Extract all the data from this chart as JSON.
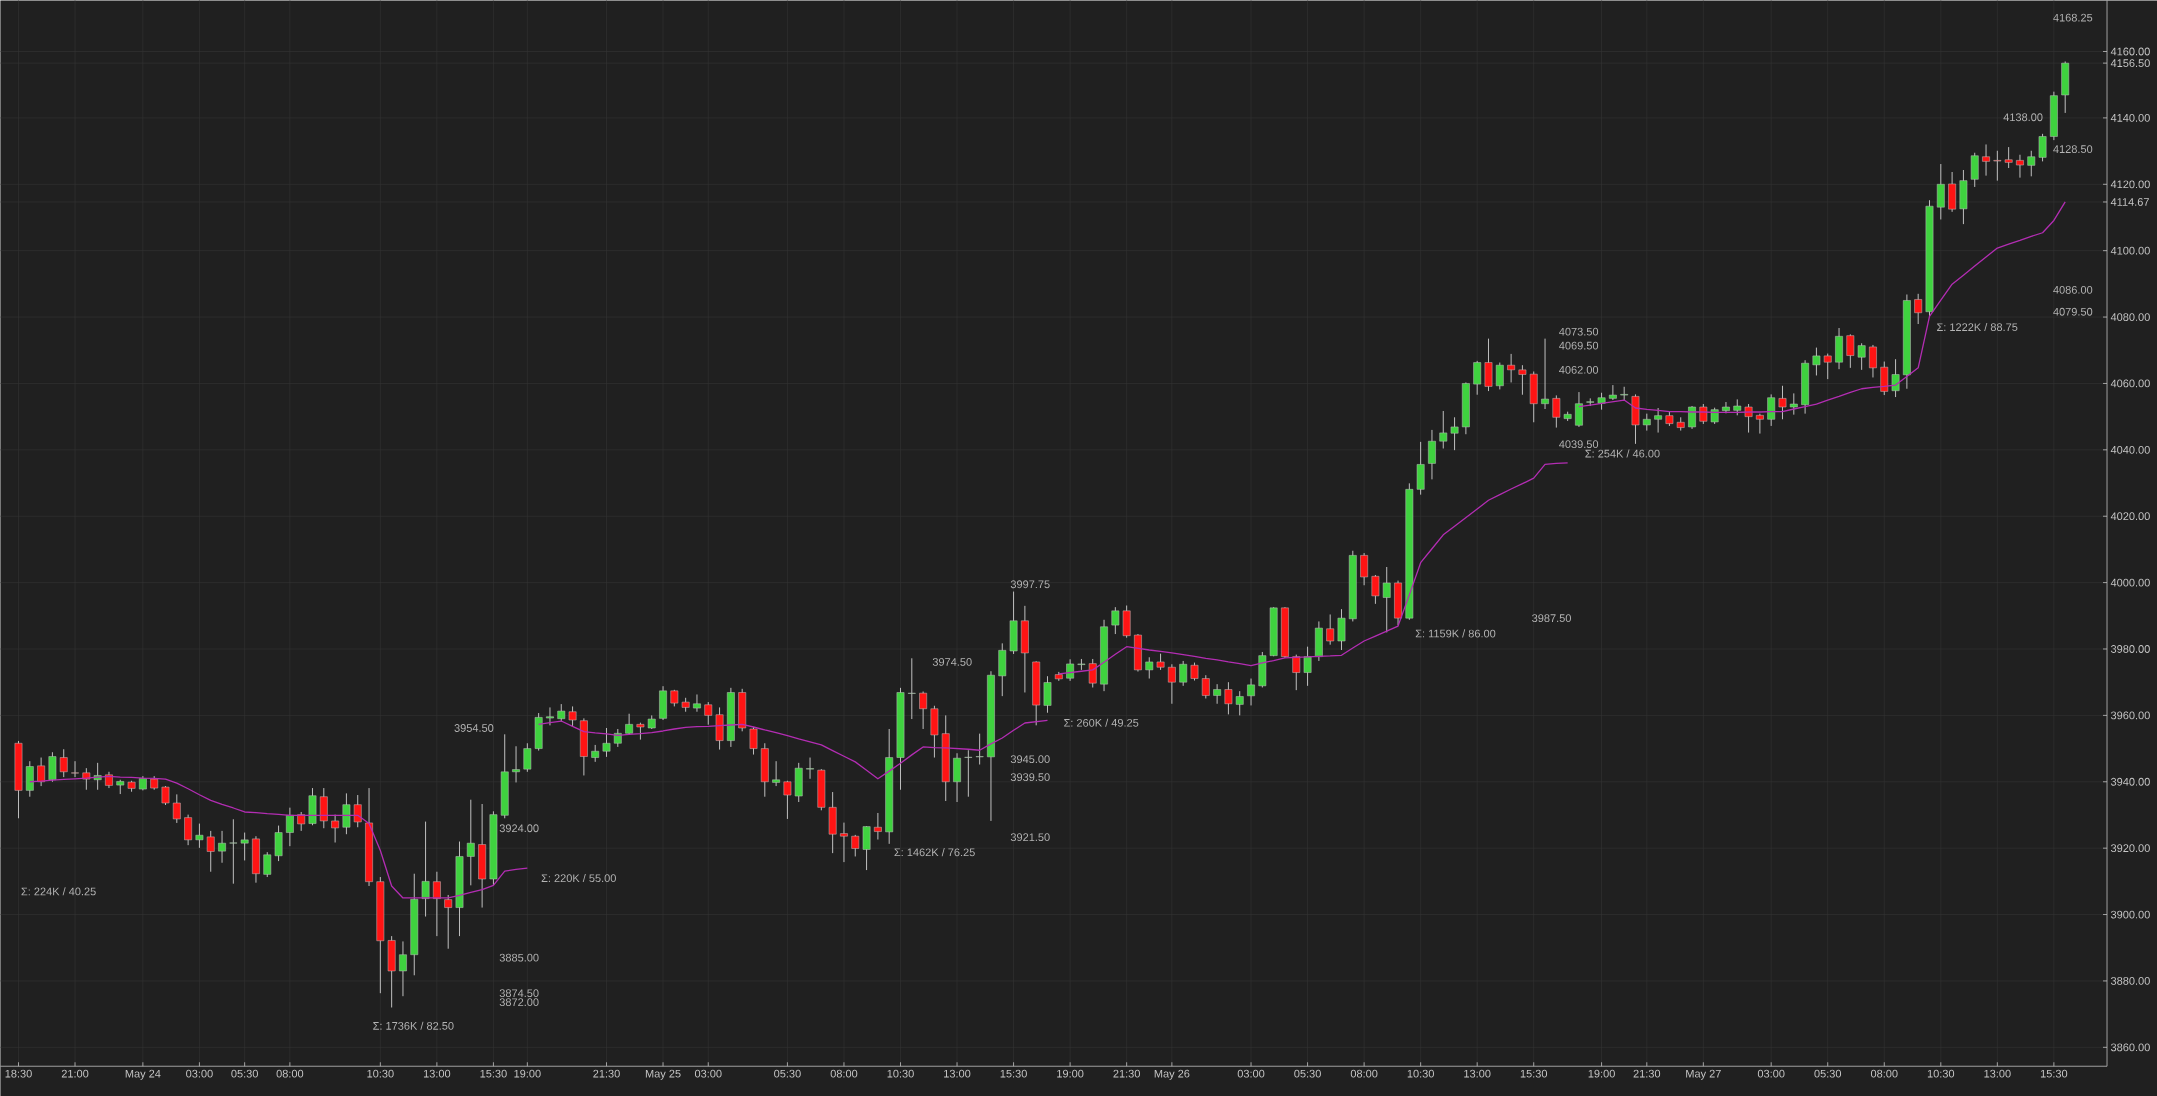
{
  "chart_data": {
    "type": "candlestick",
    "grid": true,
    "ylim": [
      3854.3,
      4175.4
    ],
    "yticks": [
      {
        "value": 3860,
        "label": "3860.00"
      },
      {
        "value": 3880,
        "label": "3880.00"
      },
      {
        "value": 3900,
        "label": "3900.00"
      },
      {
        "value": 3920,
        "label": "3920.00"
      },
      {
        "value": 3940,
        "label": "3940.00"
      },
      {
        "value": 3960,
        "label": "3960.00"
      },
      {
        "value": 3980,
        "label": "3980.00"
      },
      {
        "value": 4000,
        "label": "4000.00"
      },
      {
        "value": 4020,
        "label": "4020.00"
      },
      {
        "value": 4040,
        "label": "4040.00"
      },
      {
        "value": 4060,
        "label": "4060.00"
      },
      {
        "value": 4080,
        "label": "4080.00"
      },
      {
        "value": 4100,
        "label": "4100.00"
      },
      {
        "value": 4114.67,
        "label": "4114.67"
      },
      {
        "value": 4120,
        "label": "4120.00"
      },
      {
        "value": 4140,
        "label": "4140.00"
      },
      {
        "value": 4156.5,
        "label": "4156.50"
      },
      {
        "value": 4160,
        "label": "4160.00"
      }
    ],
    "categories": [
      "18:30",
      null,
      null,
      null,
      null,
      "21:00",
      null,
      null,
      null,
      null,
      null,
      "May 24",
      null,
      null,
      null,
      null,
      "03:00",
      null,
      null,
      null,
      "05:30",
      null,
      null,
      null,
      "08:00",
      null,
      null,
      null,
      null,
      null,
      null,
      null,
      "10:30",
      null,
      null,
      null,
      null,
      "13:00",
      null,
      null,
      null,
      null,
      "15:30",
      null,
      null,
      "19:00",
      null,
      null,
      null,
      null,
      null,
      null,
      "21:30",
      null,
      null,
      null,
      null,
      "May 25",
      null,
      null,
      null,
      "03:00",
      null,
      null,
      null,
      null,
      null,
      null,
      "05:30",
      null,
      null,
      null,
      null,
      "08:00",
      null,
      null,
      null,
      null,
      "10:30",
      null,
      null,
      null,
      null,
      "13:00",
      null,
      null,
      null,
      null,
      "15:30",
      null,
      null,
      null,
      null,
      "19:00",
      null,
      null,
      null,
      null,
      "21:30",
      null,
      null,
      null,
      "May 26",
      null,
      null,
      null,
      null,
      null,
      null,
      "03:00",
      null,
      null,
      null,
      null,
      "05:30",
      null,
      null,
      null,
      null,
      "08:00",
      null,
      null,
      null,
      null,
      "10:30",
      null,
      null,
      null,
      null,
      "13:00",
      null,
      null,
      null,
      null,
      "15:30",
      null,
      null,
      null,
      null,
      null,
      "19:00",
      null,
      null,
      null,
      "21:30",
      null,
      null,
      null,
      null,
      "May 27",
      null,
      null,
      null,
      null,
      null,
      "03:00",
      null,
      null,
      null,
      null,
      "05:30",
      null,
      null,
      null,
      null,
      "08:00",
      null,
      null,
      null,
      null,
      "10:30",
      null,
      null,
      null,
      null,
      "13:00",
      null,
      null,
      null,
      null,
      "15:30",
      null
    ],
    "ohlc": [
      [
        3951.6,
        3952.3,
        3929.0,
        3937.4
      ],
      [
        3937.4,
        3946.2,
        3935.5,
        3944.6
      ],
      [
        3944.8,
        3947.3,
        3938.7,
        3940.0
      ],
      [
        3940.6,
        3948.9,
        3940.0,
        3947.6
      ],
      [
        3947.3,
        3949.8,
        3941.4,
        3943.0
      ],
      [
        3942.7,
        3946.2,
        3941.4,
        3942.6
      ],
      [
        3942.7,
        3944.1,
        3937.6,
        3940.8
      ],
      [
        3940.6,
        3945.7,
        3937.6,
        3941.9
      ],
      [
        3942.1,
        3943.0,
        3938.1,
        3938.9
      ],
      [
        3939.0,
        3940.6,
        3936.3,
        3940.1
      ],
      [
        3939.9,
        3940.3,
        3937.0,
        3938.0
      ],
      [
        3937.8,
        3941.7,
        3937.4,
        3941.0
      ],
      [
        3940.8,
        3941.7,
        3937.6,
        3938.1
      ],
      [
        3938.4,
        3938.7,
        3933.0,
        3933.6
      ],
      [
        3933.6,
        3936.2,
        3927.6,
        3928.8
      ],
      [
        3929.2,
        3930.1,
        3920.9,
        3922.5
      ],
      [
        3922.5,
        3927.4,
        3920.1,
        3923.9
      ],
      [
        3923.4,
        3925.2,
        3912.9,
        3919.0
      ],
      [
        3919.1,
        3925.2,
        3915.6,
        3921.5
      ],
      [
        3921.5,
        3928.7,
        3909.3,
        3921.6
      ],
      [
        3921.5,
        3924.7,
        3916.3,
        3922.5
      ],
      [
        3922.8,
        3923.6,
        3909.6,
        3912.3
      ],
      [
        3912.1,
        3918.8,
        3911.3,
        3918.0
      ],
      [
        3917.7,
        3926.8,
        3916.1,
        3924.7
      ],
      [
        3924.7,
        3932.2,
        3920.6,
        3929.9
      ],
      [
        3930.1,
        3930.9,
        3925.2,
        3927.3
      ],
      [
        3927.4,
        3938.1,
        3926.9,
        3935.8
      ],
      [
        3935.5,
        3938.1,
        3926.0,
        3928.2
      ],
      [
        3928.2,
        3930.1,
        3921.7,
        3926.1
      ],
      [
        3926.3,
        3936.5,
        3924.2,
        3933.1
      ],
      [
        3933.1,
        3936.0,
        3926.3,
        3927.9
      ],
      [
        3927.6,
        3938.1,
        3908.6,
        3909.9
      ],
      [
        3909.9,
        3911.3,
        3876.3,
        3892.1
      ],
      [
        3892.2,
        3893.5,
        3872.0,
        3883.0
      ],
      [
        3883.0,
        3891.9,
        3875.4,
        3887.9
      ],
      [
        3887.9,
        3912.3,
        3881.7,
        3904.6
      ],
      [
        3904.8,
        3928.0,
        3899.4,
        3910.0
      ],
      [
        3909.9,
        3912.9,
        3893.5,
        3904.8
      ],
      [
        3904.5,
        3905.9,
        3889.7,
        3902.1
      ],
      [
        3902.1,
        3922.0,
        3893.5,
        3917.5
      ],
      [
        3917.5,
        3934.6,
        3908.8,
        3921.5
      ],
      [
        3921.1,
        3933.3,
        3902.1,
        3910.7
      ],
      [
        3910.7,
        3931.1,
        3908.8,
        3930.1
      ],
      [
        3929.9,
        3954.3,
        3929.0,
        3943.0
      ],
      [
        3943.0,
        3950.7,
        3939.8,
        3943.7
      ],
      [
        3943.8,
        3951.6,
        3943.0,
        3950.0
      ],
      [
        3950.0,
        3960.7,
        3949.4,
        3959.4
      ],
      [
        3959.2,
        3962.4,
        3957.0,
        3959.6
      ],
      [
        3959.0,
        3963.4,
        3958.1,
        3961.3
      ],
      [
        3961.1,
        3962.7,
        3956.5,
        3958.6
      ],
      [
        3958.4,
        3959.1,
        3941.9,
        3947.6
      ],
      [
        3947.3,
        3951.1,
        3946.0,
        3949.2
      ],
      [
        3949.2,
        3956.2,
        3947.5,
        3951.6
      ],
      [
        3951.6,
        3955.9,
        3950.5,
        3954.6
      ],
      [
        3954.6,
        3960.5,
        3954.3,
        3957.3
      ],
      [
        3957.3,
        3957.8,
        3952.7,
        3956.5
      ],
      [
        3956.2,
        3960.0,
        3955.9,
        3958.9
      ],
      [
        3959.1,
        3968.8,
        3958.6,
        3967.4
      ],
      [
        3967.4,
        3967.7,
        3962.7,
        3963.7
      ],
      [
        3964.0,
        3965.3,
        3961.1,
        3962.4
      ],
      [
        3962.2,
        3966.3,
        3961.1,
        3963.5
      ],
      [
        3963.2,
        3964.0,
        3957.2,
        3960.0
      ],
      [
        3960.2,
        3962.4,
        3949.7,
        3952.4
      ],
      [
        3952.4,
        3968.3,
        3950.5,
        3966.9
      ],
      [
        3966.9,
        3968.0,
        3955.2,
        3956.2
      ],
      [
        3955.9,
        3956.5,
        3948.2,
        3950.0
      ],
      [
        3950.0,
        3951.6,
        3935.5,
        3940.0
      ],
      [
        3939.8,
        3946.2,
        3938.7,
        3940.6
      ],
      [
        3940.0,
        3940.3,
        3928.8,
        3936.0
      ],
      [
        3935.7,
        3945.7,
        3933.9,
        3944.1
      ],
      [
        3943.8,
        3947.3,
        3940.9,
        3944.0
      ],
      [
        3943.5,
        3943.8,
        3931.4,
        3932.3
      ],
      [
        3932.3,
        3936.9,
        3918.5,
        3924.2
      ],
      [
        3924.4,
        3927.7,
        3915.8,
        3923.6
      ],
      [
        3923.6,
        3924.0,
        3917.5,
        3919.9
      ],
      [
        3919.6,
        3926.6,
        3913.4,
        3926.5
      ],
      [
        3926.3,
        3930.6,
        3922.6,
        3925.0
      ],
      [
        3924.9,
        3955.9,
        3921.3,
        3947.3
      ],
      [
        3947.3,
        3968.3,
        3937.6,
        3966.9
      ],
      [
        3966.6,
        3977.2,
        3958.9,
        3966.7
      ],
      [
        3966.7,
        3967.2,
        3955.9,
        3962.0
      ],
      [
        3962.0,
        3962.9,
        3947.3,
        3954.1
      ],
      [
        3954.5,
        3960.0,
        3934.2,
        3940.0
      ],
      [
        3940.0,
        3948.6,
        3933.9,
        3947.1
      ],
      [
        3947.3,
        3949.5,
        3935.5,
        3947.4
      ],
      [
        3947.5,
        3954.5,
        3945.2,
        3947.6
      ],
      [
        3947.5,
        3973.3,
        3928.2,
        3972.1
      ],
      [
        3971.9,
        3981.7,
        3965.8,
        3979.6
      ],
      [
        3979.4,
        3997.3,
        3978.5,
        3988.5
      ],
      [
        3988.5,
        3993.0,
        3966.9,
        3978.8
      ],
      [
        3976.1,
        3976.3,
        3957.0,
        3963.1
      ],
      [
        3963.0,
        3971.8,
        3960.8,
        3969.9
      ],
      [
        3972.3,
        3973.1,
        3970.4,
        3971.0
      ],
      [
        3971.2,
        3976.9,
        3970.4,
        3975.5
      ],
      [
        3975.3,
        3977.0,
        3973.7,
        3975.5
      ],
      [
        3975.6,
        3977.0,
        3968.4,
        3969.7
      ],
      [
        3969.4,
        3988.8,
        3967.3,
        3986.7
      ],
      [
        3987.2,
        3992.6,
        3984.5,
        3991.5
      ],
      [
        3991.5,
        3993.1,
        3983.4,
        3984.0
      ],
      [
        3984.2,
        3984.5,
        3973.2,
        3973.7
      ],
      [
        3973.7,
        3977.5,
        3971.1,
        3976.1
      ],
      [
        3976.1,
        3978.6,
        3973.7,
        3974.5
      ],
      [
        3974.5,
        3975.4,
        3963.5,
        3970.0
      ],
      [
        3970.0,
        3976.4,
        3968.9,
        3975.4
      ],
      [
        3975.1,
        3975.9,
        3970.5,
        3971.1
      ],
      [
        3971.1,
        3972.1,
        3965.1,
        3966.0
      ],
      [
        3966.0,
        3969.4,
        3963.5,
        3967.8
      ],
      [
        3967.8,
        3970.0,
        3960.3,
        3963.5
      ],
      [
        3963.3,
        3967.3,
        3960.0,
        3965.7
      ],
      [
        3965.9,
        3971.1,
        3963.0,
        3969.2
      ],
      [
        3968.9,
        3979.1,
        3968.4,
        3978.0
      ],
      [
        3978.0,
        3992.6,
        3977.8,
        3992.4
      ],
      [
        3992.4,
        3992.6,
        3977.3,
        3977.7
      ],
      [
        3977.7,
        3978.3,
        3967.6,
        3972.9
      ],
      [
        3972.9,
        3980.7,
        3968.9,
        3977.7
      ],
      [
        3977.7,
        3988.3,
        3976.4,
        3986.3
      ],
      [
        3986.1,
        3990.4,
        3981.3,
        3982.4
      ],
      [
        3982.4,
        3992.0,
        3979.7,
        3989.3
      ],
      [
        3989.1,
        4009.6,
        3988.3,
        4008.2
      ],
      [
        4008.2,
        4008.9,
        3999.2,
        4001.7
      ],
      [
        4001.9,
        4002.3,
        3993.6,
        3996.0
      ],
      [
        3995.5,
        4004.7,
        3985.0,
        3999.9
      ],
      [
        3999.9,
        4000.6,
        3987.2,
        3989.3
      ],
      [
        3989.3,
        4029.9,
        3988.8,
        4028.1
      ],
      [
        4028.1,
        4042.4,
        4026.5,
        4035.6
      ],
      [
        4035.9,
        4046.0,
        4031.1,
        4042.6
      ],
      [
        4042.6,
        4051.7,
        4040.4,
        4045.1
      ],
      [
        4045.0,
        4049.8,
        4039.9,
        4046.9
      ],
      [
        4046.9,
        4060.3,
        4044.7,
        4060.0
      ],
      [
        4059.8,
        4066.8,
        4056.6,
        4066.3
      ],
      [
        4066.3,
        4073.5,
        4057.7,
        4059.1
      ],
      [
        4059.3,
        4066.3,
        4058.2,
        4065.5
      ],
      [
        4065.5,
        4068.9,
        4060.3,
        4064.1
      ],
      [
        4064.1,
        4065.5,
        4056.6,
        4062.7
      ],
      [
        4062.8,
        4063.6,
        4048.3,
        4053.9
      ],
      [
        4053.9,
        4073.5,
        4052.3,
        4055.3
      ],
      [
        4055.5,
        4056.4,
        4046.7,
        4049.8
      ],
      [
        4049.4,
        4051.5,
        4048.7,
        4050.7
      ],
      [
        4047.4,
        4057.4,
        4046.9,
        4053.9
      ],
      [
        4054.3,
        4055.5,
        4053.2,
        4054.5
      ],
      [
        4054.0,
        4057.2,
        4052.1,
        4055.7
      ],
      [
        4055.5,
        4059.5,
        4055.0,
        4056.5
      ],
      [
        4056.5,
        4059.0,
        4055.0,
        4056.7
      ],
      [
        4056.1,
        4056.7,
        4041.8,
        4047.5
      ],
      [
        4047.5,
        4050.9,
        4045.8,
        4049.2
      ],
      [
        4049.2,
        4052.6,
        4045.2,
        4050.3
      ],
      [
        4050.3,
        4051.5,
        4047.2,
        4047.9
      ],
      [
        4048.3,
        4049.8,
        4045.8,
        4046.7
      ],
      [
        4046.9,
        4053.2,
        4046.3,
        4052.9
      ],
      [
        4052.9,
        4053.8,
        4047.8,
        4048.6
      ],
      [
        4048.4,
        4052.7,
        4047.8,
        4052.1
      ],
      [
        4051.8,
        4054.4,
        4051.0,
        4052.9
      ],
      [
        4051.9,
        4055.2,
        4050.4,
        4053.2
      ],
      [
        4052.9,
        4053.8,
        4045.2,
        4050.0
      ],
      [
        4050.4,
        4050.9,
        4044.9,
        4049.2
      ],
      [
        4049.2,
        4056.7,
        4047.2,
        4055.7
      ],
      [
        4055.5,
        4059.3,
        4049.2,
        4052.9
      ],
      [
        4052.9,
        4057.0,
        4050.6,
        4053.8
      ],
      [
        4053.6,
        4067.0,
        4050.9,
        4066.1
      ],
      [
        4065.6,
        4070.8,
        4062.4,
        4068.3
      ],
      [
        4068.3,
        4069.0,
        4061.3,
        4066.4
      ],
      [
        4066.4,
        4076.7,
        4064.3,
        4074.2
      ],
      [
        4074.4,
        4074.8,
        4064.7,
        4068.4
      ],
      [
        4067.9,
        4072.1,
        4064.1,
        4071.4
      ],
      [
        4071.0,
        4071.6,
        4061.8,
        4064.7
      ],
      [
        4064.9,
        4066.6,
        4056.5,
        4057.6
      ],
      [
        4057.8,
        4067.3,
        4055.9,
        4062.7
      ],
      [
        4062.6,
        4086.8,
        4058.4,
        4085.0
      ],
      [
        4085.3,
        4087.0,
        4077.9,
        4081.3
      ],
      [
        4081.6,
        4115.2,
        4080.0,
        4113.4
      ],
      [
        4113.1,
        4126.1,
        4109.4,
        4120.0
      ],
      [
        4120.1,
        4123.7,
        4111.7,
        4112.5
      ],
      [
        4112.6,
        4124.3,
        4108.0,
        4121.1
      ],
      [
        4121.5,
        4129.5,
        4119.2,
        4128.6
      ],
      [
        4128.3,
        4132.0,
        4122.6,
        4126.9
      ],
      [
        4127.2,
        4130.1,
        4121.1,
        4127.0
      ],
      [
        4127.4,
        4131.2,
        4124.9,
        4126.6
      ],
      [
        4127.2,
        4128.9,
        4122.0,
        4125.8
      ],
      [
        4125.7,
        4130.1,
        4122.4,
        4128.3
      ],
      [
        4128.1,
        4135.2,
        4126.9,
        4134.4
      ],
      [
        4134.4,
        4147.9,
        4133.3,
        4146.7
      ],
      [
        4146.9,
        4157.0,
        4141.5,
        4156.5
      ]
    ],
    "series": [
      {
        "type": "line",
        "color": "#b32db3",
        "values": [
          null,
          3940.0,
          3940.2,
          3940.5,
          3940.7,
          3940.9,
          3941.1,
          3941.4,
          3941.6,
          3941.4,
          3941.3,
          3941.1,
          3941.0,
          3940.8,
          3939.6,
          3937.9,
          3936.1,
          3934.4,
          3933.2,
          3932.1,
          3930.9,
          3930.7,
          3930.4,
          3930.2,
          3929.9,
          3929.9,
          3929.9,
          3929.9,
          3929.9,
          3929.9,
          3929.9,
          3927.4,
          3919.3,
          3908.6,
          3905.0,
          3905.0,
          3905.0,
          3905.0,
          3905.0,
          3905.8,
          3906.7,
          3907.5,
          3908.8,
          3913.1,
          3913.6,
          3914.0,
          null,
          null,
          null,
          null,
          null,
          null,
          null,
          null,
          null,
          null,
          null,
          null,
          null,
          null,
          null,
          null,
          null,
          null,
          null,
          null,
          null,
          null,
          null,
          null,
          null,
          null,
          null,
          null,
          null,
          null,
          null,
          null,
          null,
          null,
          null,
          null,
          null,
          null,
          null,
          null,
          null,
          null,
          null,
          null,
          null,
          null,
          null,
          null,
          null,
          null,
          null,
          null,
          null,
          null,
          null,
          null,
          null,
          null,
          null,
          null,
          null,
          null,
          null,
          null,
          null,
          null,
          null,
          null,
          null,
          null,
          null,
          null,
          null,
          null,
          null,
          null,
          null,
          null,
          null,
          null,
          null,
          null,
          null,
          null,
          null,
          null,
          null,
          null,
          null,
          null,
          null,
          null,
          null,
          null,
          null,
          null,
          null,
          null,
          null,
          null,
          null,
          null,
          null,
          null,
          null,
          null,
          null,
          null,
          null,
          null,
          null,
          null,
          null,
          null,
          null,
          null,
          null,
          null,
          null,
          null,
          null,
          null,
          null,
          null,
          null,
          null,
          null,
          null,
          null,
          null,
          null,
          null,
          null,
          null,
          null,
          null
        ]
      },
      {
        "type": "line",
        "color": "#b32db3",
        "values": [
          null,
          null,
          null,
          null,
          null,
          null,
          null,
          null,
          null,
          null,
          null,
          null,
          null,
          null,
          null,
          null,
          null,
          null,
          null,
          null,
          null,
          null,
          null,
          null,
          null,
          null,
          null,
          null,
          null,
          null,
          null,
          null,
          null,
          null,
          null,
          null,
          null,
          null,
          null,
          null,
          null,
          null,
          null,
          null,
          null,
          null,
          3957.3,
          3957.8,
          3958.3,
          3956.7,
          3955.1,
          3954.7,
          3954.4,
          3954.0,
          3954.3,
          3954.5,
          3954.8,
          3955.3,
          3955.9,
          3956.4,
          3956.6,
          3956.7,
          3956.9,
          3957.1,
          3957.3,
          3956.5,
          3955.6,
          3954.8,
          3953.9,
          3952.9,
          3952.0,
          3951.1,
          3949.4,
          3947.7,
          3946.0,
          3943.5,
          3940.9,
          3943.2,
          3945.6,
          3948.1,
          3950.5,
          3950.3,
          3950.2,
          3950.0,
          3949.8,
          3949.5,
          3951.4,
          3953.2,
          3955.5,
          3957.7,
          3958.1,
          3958.5,
          null,
          null,
          null,
          null,
          null,
          null,
          null,
          null,
          null,
          null,
          null,
          null,
          null,
          null,
          null,
          null,
          null,
          null,
          null,
          null,
          null,
          null,
          null,
          null,
          null,
          null,
          null,
          null,
          null,
          null,
          null,
          null,
          null,
          null,
          null,
          null,
          null,
          null,
          null,
          null,
          null,
          null,
          null,
          null,
          null,
          null,
          null,
          null,
          null,
          null,
          null,
          null,
          null,
          null,
          null,
          null,
          null,
          null,
          null,
          null,
          null,
          null,
          null,
          null,
          null,
          null,
          null,
          null,
          null,
          null,
          null,
          null,
          null,
          null,
          null,
          null,
          null,
          null,
          null,
          null,
          null,
          null,
          null,
          null,
          null,
          null,
          null,
          null,
          null,
          null
        ]
      },
      {
        "type": "line",
        "color": "#b32db3",
        "values": [
          null,
          null,
          null,
          null,
          null,
          null,
          null,
          null,
          null,
          null,
          null,
          null,
          null,
          null,
          null,
          null,
          null,
          null,
          null,
          null,
          null,
          null,
          null,
          null,
          null,
          null,
          null,
          null,
          null,
          null,
          null,
          null,
          null,
          null,
          null,
          null,
          null,
          null,
          null,
          null,
          null,
          null,
          null,
          null,
          null,
          null,
          null,
          null,
          null,
          null,
          null,
          null,
          null,
          null,
          null,
          null,
          null,
          null,
          null,
          null,
          null,
          null,
          null,
          null,
          null,
          null,
          null,
          null,
          null,
          null,
          null,
          null,
          null,
          null,
          null,
          null,
          null,
          null,
          null,
          null,
          null,
          null,
          null,
          null,
          null,
          null,
          null,
          null,
          null,
          null,
          null,
          null,
          3972.5,
          3972.9,
          3973.3,
          3973.7,
          3976.0,
          3978.4,
          3980.7,
          3980.2,
          3979.7,
          3979.3,
          3978.8,
          3978.3,
          3977.8,
          3977.2,
          3976.7,
          3976.1,
          3975.6,
          3975.0,
          3975.8,
          3976.5,
          3977.3,
          3977.5,
          3977.6,
          3977.8,
          3977.9,
          3978.1,
          3980.3,
          3982.4,
          3983.9,
          3985.4,
          3986.9,
          3996.3,
          4006.0,
          4010.2,
          4014.4,
          4017.0,
          4019.6,
          4022.2,
          4024.8,
          4026.5,
          4028.2,
          4029.8,
          4031.5,
          4035.6,
          4035.9,
          4036.1,
          null,
          null,
          null,
          null,
          null,
          null,
          null,
          null,
          null,
          null,
          null,
          null,
          null,
          null,
          null,
          null,
          null,
          null,
          null,
          null,
          null,
          null,
          null,
          null,
          null,
          null,
          null,
          null,
          null,
          null,
          null,
          null,
          null,
          null,
          null,
          null,
          null,
          null,
          null,
          null,
          null,
          null,
          null,
          null
        ]
      },
      {
        "type": "line",
        "color": "#b32db3",
        "values": [
          null,
          null,
          null,
          null,
          null,
          null,
          null,
          null,
          null,
          null,
          null,
          null,
          null,
          null,
          null,
          null,
          null,
          null,
          null,
          null,
          null,
          null,
          null,
          null,
          null,
          null,
          null,
          null,
          null,
          null,
          null,
          null,
          null,
          null,
          null,
          null,
          null,
          null,
          null,
          null,
          null,
          null,
          null,
          null,
          null,
          null,
          null,
          null,
          null,
          null,
          null,
          null,
          null,
          null,
          null,
          null,
          null,
          null,
          null,
          null,
          null,
          null,
          null,
          null,
          null,
          null,
          null,
          null,
          null,
          null,
          null,
          null,
          null,
          null,
          null,
          null,
          null,
          null,
          null,
          null,
          null,
          null,
          null,
          null,
          null,
          null,
          null,
          null,
          null,
          null,
          null,
          null,
          null,
          null,
          null,
          null,
          null,
          null,
          null,
          null,
          null,
          null,
          null,
          null,
          null,
          null,
          null,
          null,
          null,
          null,
          null,
          null,
          null,
          null,
          null,
          null,
          null,
          null,
          null,
          null,
          null,
          null,
          null,
          null,
          null,
          null,
          null,
          null,
          null,
          null,
          null,
          null,
          null,
          null,
          null,
          null,
          null,
          null,
          4053.0,
          4053.5,
          4054.0,
          4054.5,
          4055.0,
          4052.6,
          4052.2,
          4051.9,
          4051.5,
          4051.5,
          4051.4,
          4051.4,
          4051.3,
          4051.3,
          4051.3,
          4051.4,
          4051.4,
          4051.5,
          4051.5,
          4052.3,
          4053.0,
          4053.8,
          4055.0,
          4056.1,
          4057.3,
          4058.4,
          4058.8,
          4059.1,
          4059.5,
          4062.1,
          4064.7,
          4080.2,
          4085.1,
          4089.9,
          4092.6,
          4095.4,
          4098.1,
          4100.8,
          4102.0,
          4103.1,
          4104.3,
          4105.4,
          4109.1,
          4114.7
        ]
      }
    ],
    "annotations": [
      "Σ: 224K / 40.25",
      "3954.50",
      "3924.00",
      "3885.00",
      "3874.50",
      "3872.00",
      "Σ: 1736K / 82.50",
      "Σ: 220K / 55.00",
      "3997.75",
      "3974.50",
      "3945.00",
      "3939.50",
      "3921.50",
      "Σ: 1462K / 76.25",
      "Σ: 260K / 49.25",
      "4073.50",
      "4069.50",
      "4062.00",
      "4039.50",
      "3987.50",
      "Σ: 1159K / 86.00",
      "Σ: 254K / 46.00",
      "4168.25",
      "4138.00",
      "4128.50",
      "4086.00",
      "4079.50",
      "Σ: 1222K / 88.75"
    ]
  }
}
